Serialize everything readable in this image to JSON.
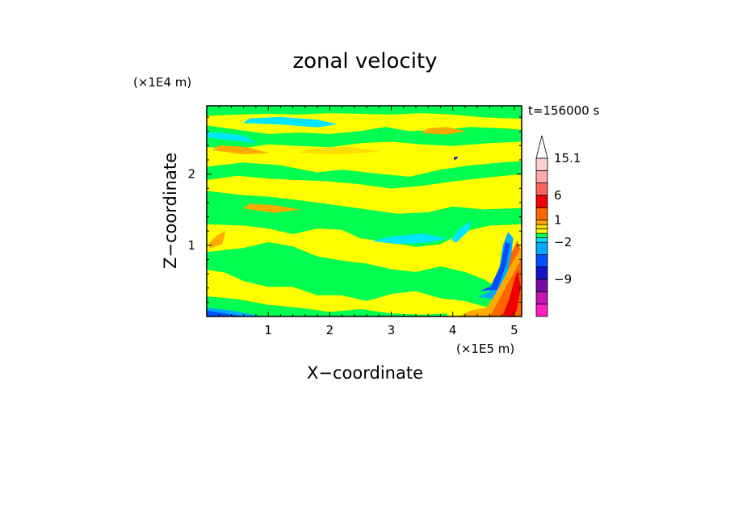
{
  "chart_data": {
    "type": "heatmap",
    "title": "zonal velocity",
    "xlabel": "X−coordinate",
    "ylabel": "Z−coordinate",
    "x_unit": "(×1E5 m)",
    "y_unit": "(×1E4 m)",
    "time_label": "t=156000 s",
    "xlim": [
      0,
      5.12
    ],
    "ylim": [
      0,
      2.96
    ],
    "x_ticks": [
      {
        "value": 1,
        "label": "1"
      },
      {
        "value": 2,
        "label": "2"
      },
      {
        "value": 3,
        "label": "3"
      },
      {
        "value": 4,
        "label": "4"
      },
      {
        "value": 5,
        "label": "5"
      }
    ],
    "y_ticks": [
      {
        "value": 1,
        "label": "1"
      },
      {
        "value": 2,
        "label": "2"
      }
    ],
    "colorbar": {
      "levels": [
        {
          "value": -15,
          "color": "#ff1fbe"
        },
        {
          "value": -12,
          "color": "#c814b4"
        },
        {
          "value": -9,
          "color": "#7a0aa8"
        },
        {
          "value": -6,
          "color": "#1414c8"
        },
        {
          "value": -4,
          "color": "#0050ff"
        },
        {
          "value": -2,
          "color": "#00aaff"
        },
        {
          "value": -1,
          "color": "#00e6ff"
        },
        {
          "value": -0.5,
          "color": "#00ff50"
        },
        {
          "value": 0,
          "color": "#ffff00"
        },
        {
          "value": 0.5,
          "color": "#ffdd00"
        },
        {
          "value": 1,
          "color": "#ffaa00"
        },
        {
          "value": 3,
          "color": "#ff6600"
        },
        {
          "value": 6,
          "color": "#ee0000"
        },
        {
          "value": 9,
          "color": "#ff6060"
        },
        {
          "value": 12,
          "color": "#ffaaaa"
        },
        {
          "value": 15.1,
          "color": "#ffd0d0"
        }
      ],
      "tick_labels": [
        "15.1",
        "6",
        "1",
        "−2",
        "−9"
      ],
      "extend": "max"
    },
    "background_color": "#ffff00",
    "regions": [
      {
        "color": "#00ff50",
        "pts": [
          [
            0,
            2.96
          ],
          [
            5.12,
            2.96
          ],
          [
            5.12,
            2.78
          ],
          [
            4.5,
            2.8
          ],
          [
            4.0,
            2.84
          ],
          [
            3.5,
            2.86
          ],
          [
            3.0,
            2.84
          ],
          [
            2.5,
            2.85
          ],
          [
            2.0,
            2.86
          ],
          [
            1.5,
            2.84
          ],
          [
            1.0,
            2.85
          ],
          [
            0.5,
            2.84
          ],
          [
            0,
            2.82
          ]
        ]
      },
      {
        "color": "#00ff50",
        "pts": [
          [
            0,
            2.68
          ],
          [
            0.5,
            2.62
          ],
          [
            1.0,
            2.56
          ],
          [
            1.5,
            2.58
          ],
          [
            2.0,
            2.56
          ],
          [
            2.5,
            2.6
          ],
          [
            2.9,
            2.66
          ],
          [
            3.3,
            2.6
          ],
          [
            3.8,
            2.62
          ],
          [
            4.3,
            2.66
          ],
          [
            4.8,
            2.64
          ],
          [
            5.12,
            2.62
          ],
          [
            5.12,
            2.46
          ],
          [
            4.6,
            2.44
          ],
          [
            4.0,
            2.4
          ],
          [
            3.5,
            2.42
          ],
          [
            3.0,
            2.46
          ],
          [
            2.5,
            2.44
          ],
          [
            2.0,
            2.38
          ],
          [
            1.5,
            2.4
          ],
          [
            1.0,
            2.42
          ],
          [
            0.5,
            2.36
          ],
          [
            0,
            2.38
          ]
        ]
      },
      {
        "color": "#00ff50",
        "pts": [
          [
            0,
            2.1
          ],
          [
            0.6,
            2.16
          ],
          [
            1.2,
            2.12
          ],
          [
            1.8,
            2.02
          ],
          [
            2.2,
            2.06
          ],
          [
            2.8,
            2.0
          ],
          [
            3.3,
            1.96
          ],
          [
            3.8,
            2.06
          ],
          [
            4.3,
            2.12
          ],
          [
            4.8,
            2.16
          ],
          [
            5.12,
            2.18
          ],
          [
            5.12,
            2.0
          ],
          [
            4.6,
            1.96
          ],
          [
            4.0,
            1.9
          ],
          [
            3.5,
            1.84
          ],
          [
            3.0,
            1.8
          ],
          [
            2.5,
            1.86
          ],
          [
            2.0,
            1.9
          ],
          [
            1.5,
            1.92
          ],
          [
            1.0,
            1.94
          ],
          [
            0.5,
            1.98
          ],
          [
            0,
            1.92
          ]
        ]
      },
      {
        "color": "#00ff50",
        "pts": [
          [
            0,
            1.76
          ],
          [
            0.6,
            1.7
          ],
          [
            1.0,
            1.68
          ],
          [
            1.6,
            1.62
          ],
          [
            2.1,
            1.56
          ],
          [
            2.6,
            1.5
          ],
          [
            3.1,
            1.44
          ],
          [
            3.6,
            1.46
          ],
          [
            4.0,
            1.54
          ],
          [
            4.5,
            1.5
          ],
          [
            5.12,
            1.52
          ],
          [
            5.12,
            1.3
          ],
          [
            4.6,
            1.28
          ],
          [
            4.2,
            1.2
          ],
          [
            3.8,
            1.02
          ],
          [
            3.4,
            0.98
          ],
          [
            2.9,
            1.06
          ],
          [
            2.5,
            1.1
          ],
          [
            2.2,
            1.22
          ],
          [
            1.8,
            1.24
          ],
          [
            1.4,
            1.16
          ],
          [
            1.0,
            1.24
          ],
          [
            0.6,
            1.28
          ],
          [
            0,
            1.3
          ]
        ]
      },
      {
        "color": "#00ff50",
        "pts": [
          [
            0,
            0.9
          ],
          [
            0.6,
            0.96
          ],
          [
            1.0,
            1.04
          ],
          [
            1.4,
            0.98
          ],
          [
            1.8,
            0.84
          ],
          [
            2.2,
            0.78
          ],
          [
            2.6,
            0.74
          ],
          [
            3.0,
            0.66
          ],
          [
            3.4,
            0.62
          ],
          [
            3.8,
            0.7
          ],
          [
            4.2,
            0.62
          ],
          [
            4.5,
            0.52
          ],
          [
            4.7,
            0.42
          ],
          [
            4.7,
            0.1
          ],
          [
            4.2,
            0.22
          ],
          [
            3.8,
            0.26
          ],
          [
            3.4,
            0.36
          ],
          [
            3.0,
            0.32
          ],
          [
            2.6,
            0.22
          ],
          [
            2.2,
            0.3
          ],
          [
            1.8,
            0.3
          ],
          [
            1.4,
            0.42
          ],
          [
            1.0,
            0.42
          ],
          [
            0.6,
            0.5
          ],
          [
            0.3,
            0.62
          ],
          [
            0,
            0.66
          ]
        ]
      },
      {
        "color": "#00ff50",
        "pts": [
          [
            0,
            0.28
          ],
          [
            0.5,
            0.24
          ],
          [
            1.0,
            0.16
          ],
          [
            1.5,
            0.12
          ],
          [
            2.0,
            0.06
          ],
          [
            2.5,
            0.1
          ],
          [
            3.0,
            0.04
          ],
          [
            3.5,
            0.02
          ],
          [
            3.9,
            0.04
          ],
          [
            3.9,
            0
          ],
          [
            0,
            0
          ]
        ]
      },
      {
        "color": "#00e6ff",
        "pts": [
          [
            0.6,
            2.72
          ],
          [
            1.2,
            2.7
          ],
          [
            1.8,
            2.66
          ],
          [
            2.1,
            2.7
          ],
          [
            1.8,
            2.76
          ],
          [
            1.2,
            2.8
          ],
          [
            0.7,
            2.78
          ]
        ]
      },
      {
        "color": "#00e6ff",
        "pts": [
          [
            0,
            2.52
          ],
          [
            0.4,
            2.48
          ],
          [
            0.8,
            2.44
          ],
          [
            0.6,
            2.54
          ],
          [
            0.2,
            2.58
          ],
          [
            0,
            2.58
          ]
        ]
      },
      {
        "color": "#00e6ff",
        "pts": [
          [
            2.7,
            1.06
          ],
          [
            3.1,
            1.02
          ],
          [
            3.6,
            1.04
          ],
          [
            3.9,
            1.1
          ],
          [
            3.5,
            1.16
          ],
          [
            3.0,
            1.12
          ]
        ]
      },
      {
        "color": "#00e6ff",
        "pts": [
          [
            4.05,
            1.04
          ],
          [
            4.25,
            1.2
          ],
          [
            4.3,
            1.34
          ],
          [
            4.1,
            1.22
          ],
          [
            3.98,
            1.08
          ]
        ]
      },
      {
        "color": "#00aaff",
        "pts": [
          [
            0,
            0.12
          ],
          [
            0.4,
            0.08
          ],
          [
            0.9,
            0.0
          ],
          [
            0,
            0.0
          ]
        ]
      },
      {
        "color": "#0050ff",
        "pts": [
          [
            0,
            0.08
          ],
          [
            0.3,
            0.04
          ],
          [
            0.6,
            0
          ],
          [
            0,
            0
          ]
        ]
      },
      {
        "color": "#00aaff",
        "pts": [
          [
            4.42,
            0.28
          ],
          [
            4.6,
            0.34
          ],
          [
            4.75,
            0.6
          ],
          [
            4.82,
            1.0
          ],
          [
            4.9,
            1.18
          ],
          [
            4.98,
            1.1
          ],
          [
            4.94,
            0.82
          ],
          [
            4.85,
            0.5
          ],
          [
            4.7,
            0.24
          ]
        ]
      },
      {
        "color": "#0050ff",
        "pts": [
          [
            4.45,
            0.36
          ],
          [
            4.62,
            0.42
          ],
          [
            4.78,
            0.72
          ],
          [
            4.86,
            1.04
          ],
          [
            4.93,
            1.02
          ],
          [
            4.86,
            0.72
          ],
          [
            4.72,
            0.38
          ]
        ]
      },
      {
        "color": "#ff6600",
        "pts": [
          [
            4.4,
            0.02
          ],
          [
            4.6,
            0.1
          ],
          [
            4.75,
            0.22
          ],
          [
            4.88,
            0.56
          ],
          [
            4.96,
            0.9
          ],
          [
            5.05,
            1.06
          ],
          [
            5.12,
            0.88
          ],
          [
            5.12,
            0.0
          ],
          [
            4.4,
            0.0
          ]
        ]
      },
      {
        "color": "#ffaa00",
        "pts": [
          [
            4.1,
            0
          ],
          [
            4.3,
            0.08
          ],
          [
            4.55,
            0.12
          ],
          [
            4.7,
            0.32
          ],
          [
            4.9,
            0.64
          ],
          [
            5.12,
            0.98
          ],
          [
            5.12,
            0.82
          ],
          [
            4.9,
            0.48
          ],
          [
            4.6,
            0.0
          ]
        ]
      },
      {
        "color": "#ee0000",
        "pts": [
          [
            4.82,
            0.02
          ],
          [
            4.92,
            0.24
          ],
          [
            5.0,
            0.5
          ],
          [
            5.06,
            0.64
          ],
          [
            5.1,
            0.4
          ],
          [
            5.04,
            0.1
          ],
          [
            4.98,
            0
          ]
        ]
      },
      {
        "color": "#ffaa00",
        "pts": [
          [
            3.5,
            2.58
          ],
          [
            3.9,
            2.56
          ],
          [
            4.2,
            2.6
          ],
          [
            3.9,
            2.66
          ],
          [
            3.6,
            2.64
          ]
        ]
      },
      {
        "color": "#ffdd00",
        "pts": [
          [
            1.5,
            2.3
          ],
          [
            2.2,
            2.28
          ],
          [
            2.8,
            2.32
          ],
          [
            2.3,
            2.38
          ],
          [
            1.7,
            2.36
          ]
        ]
      },
      {
        "color": "#ffaa00",
        "pts": [
          [
            0.1,
            2.34
          ],
          [
            0.6,
            2.28
          ],
          [
            1.0,
            2.3
          ],
          [
            0.6,
            2.38
          ],
          [
            0.2,
            2.4
          ]
        ]
      },
      {
        "color": "#ffaa00",
        "pts": [
          [
            0.6,
            1.52
          ],
          [
            1.1,
            1.46
          ],
          [
            1.5,
            1.5
          ],
          [
            1.1,
            1.56
          ],
          [
            0.7,
            1.58
          ]
        ]
      },
      {
        "color": "#ffaa00",
        "pts": [
          [
            0.05,
            0.96
          ],
          [
            0.25,
            1.02
          ],
          [
            0.3,
            1.2
          ],
          [
            0.18,
            1.14
          ],
          [
            0.05,
            1.04
          ]
        ]
      },
      {
        "color": "#1414c8",
        "pts": [
          [
            4.02,
            2.2
          ],
          [
            4.07,
            2.22
          ],
          [
            4.08,
            2.24
          ],
          [
            4.03,
            2.24
          ]
        ]
      }
    ]
  }
}
